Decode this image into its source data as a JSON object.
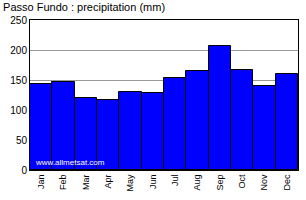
{
  "chart_data": {
    "type": "bar",
    "title": "Passo Fundo : precipitation (mm)",
    "categories": [
      "Jan",
      "Feb",
      "Mar",
      "Apr",
      "May",
      "Jun",
      "Jul",
      "Aug",
      "Sep",
      "Oct",
      "Nov",
      "Dec"
    ],
    "values": [
      143,
      147,
      120,
      116,
      130,
      128,
      153,
      165,
      207,
      167,
      140,
      160
    ],
    "color": "#0000ff",
    "ylim": [
      0,
      250
    ],
    "yticks": [
      0,
      50,
      100,
      150,
      200,
      250
    ],
    "grid": true,
    "annotation": "www.allmetsat.com"
  }
}
